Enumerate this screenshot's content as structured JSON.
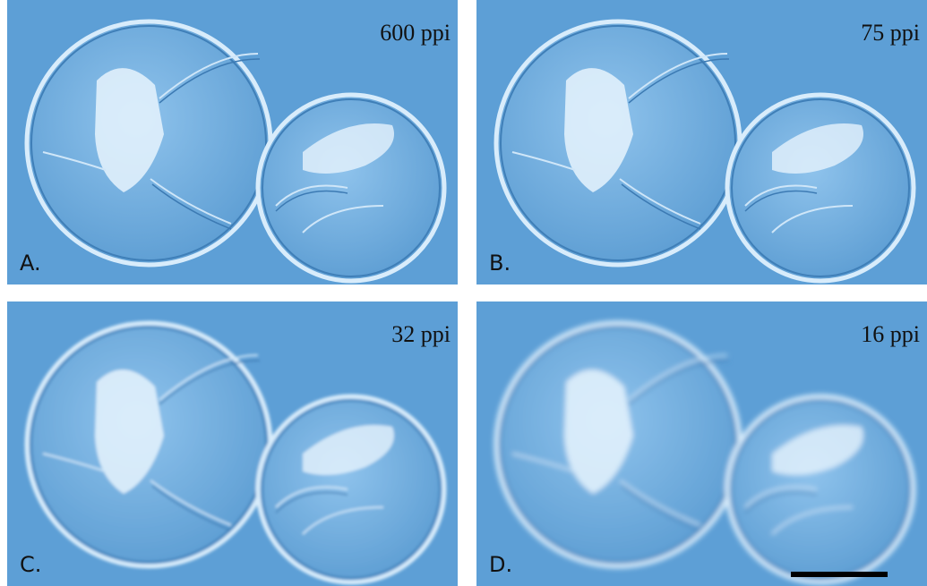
{
  "panels": [
    {
      "label": "A.",
      "resolution": "600 ppi"
    },
    {
      "label": "B.",
      "resolution": "75 ppi"
    },
    {
      "label": "C.",
      "resolution": "32 ppi"
    },
    {
      "label": "D.",
      "resolution": "16 ppi"
    }
  ]
}
